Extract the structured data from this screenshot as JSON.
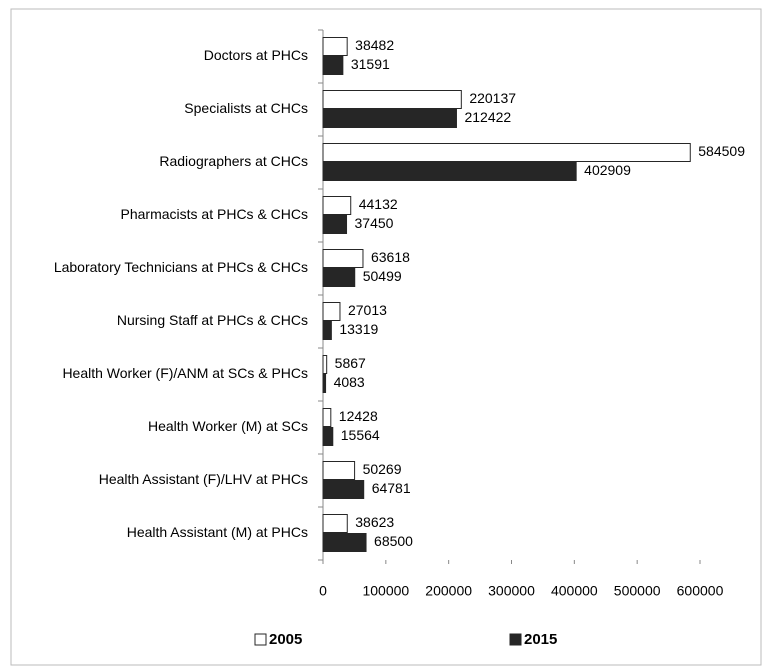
{
  "chart_data": {
    "type": "bar",
    "orientation": "horizontal",
    "categories": [
      "Doctors at PHCs",
      "Specialists at CHCs",
      "Radiographers at CHCs",
      "Pharmacists at PHCs & CHCs",
      "Laboratory Technicians at PHCs & CHCs",
      "Nursing Staff at PHCs & CHCs",
      "Health Worker (F)/ANM at SCs & PHCs",
      "Health Worker (M) at SCs",
      "Health Assistant (F)/LHV at PHCs",
      "Health Assistant (M) at PHCs"
    ],
    "series": [
      {
        "name": "2005",
        "color": "#ffffff",
        "values": [
          38482,
          220137,
          584509,
          44132,
          63618,
          27013,
          5867,
          12428,
          50269,
          38623
        ]
      },
      {
        "name": "2015",
        "color": "#262626",
        "values": [
          31591,
          212422,
          402909,
          37450,
          50499,
          13319,
          4083,
          15564,
          64781,
          68500
        ]
      }
    ],
    "xlim": [
      0,
      600000
    ],
    "xticks": [
      0,
      100000,
      200000,
      300000,
      400000,
      500000,
      600000
    ],
    "legend": "bottom"
  }
}
